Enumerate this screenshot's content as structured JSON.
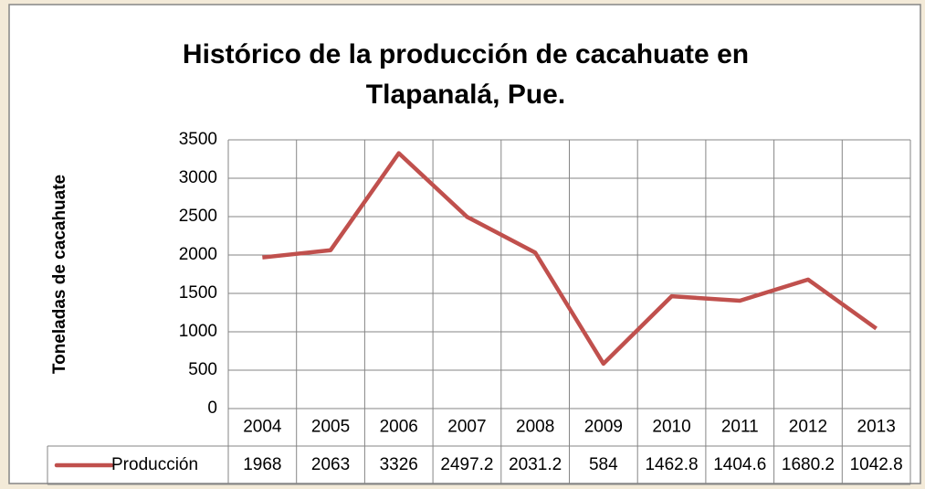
{
  "chart_data": {
    "type": "line",
    "title": "Histórico de la producción de cacahuate en Tlapanalá, Pue.",
    "y_label": "Toneladas de cacahuate",
    "categories": [
      "2004",
      "2005",
      "2006",
      "2007",
      "2008",
      "2009",
      "2010",
      "2011",
      "2012",
      "2013"
    ],
    "series": [
      {
        "name": "Producción",
        "color": "#c0504d",
        "values": [
          1968,
          2063,
          3326,
          2497.2,
          2031.2,
          584,
          1462.8,
          1404.6,
          1680.2,
          1042.8
        ]
      }
    ],
    "ylim": [
      0,
      3500
    ],
    "yticks": [
      0,
      500,
      1000,
      1500,
      2000,
      2500,
      3000,
      3500
    ],
    "grid": true,
    "data_table": true
  }
}
